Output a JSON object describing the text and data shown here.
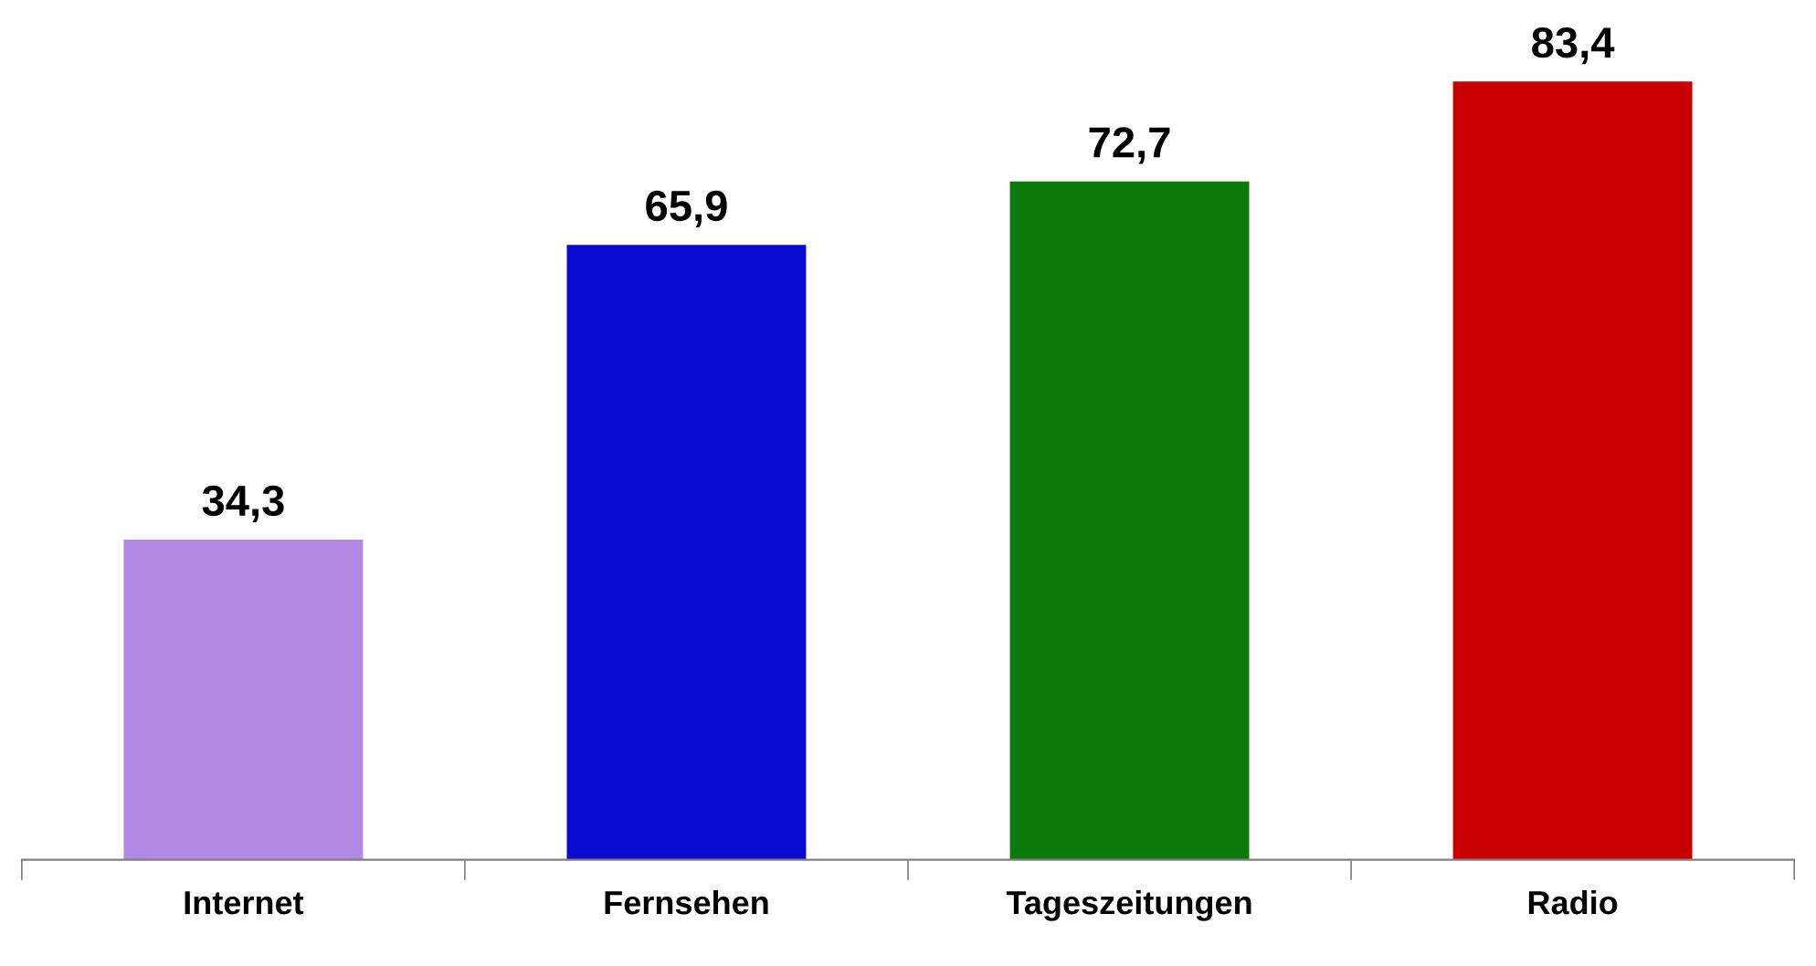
{
  "chart_data": {
    "type": "bar",
    "categories": [
      "Internet",
      "Fernsehen",
      "Tageszeitungen",
      "Radio"
    ],
    "values": [
      34.3,
      65.9,
      72.7,
      83.4
    ],
    "value_labels": [
      "34,3",
      "65,9",
      "72,7",
      "83,4"
    ],
    "colors": [
      "#b28ae6",
      "#0a0ad0",
      "#0a7a0a",
      "#c80000"
    ],
    "grid": false,
    "legend": false
  }
}
